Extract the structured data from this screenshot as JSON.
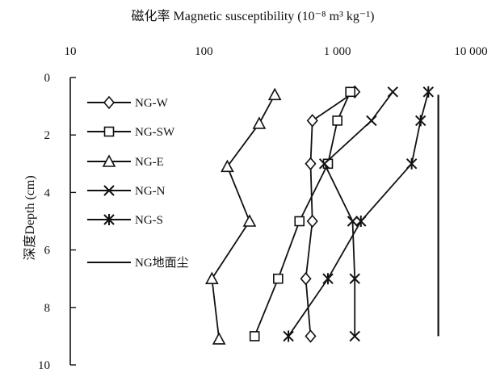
{
  "chart_data": {
    "type": "line",
    "title": "磁化率 Magnetic susceptibility (10⁻⁸ m³ kg⁻¹)",
    "xlabel": "磁化率 Magnetic susceptibility (10⁻⁸ m³ kg⁻¹)",
    "ylabel": "深度Depth (cm)",
    "x_scale": "log",
    "xlim": [
      10,
      10000
    ],
    "ylim": [
      0,
      10
    ],
    "y_inverted": true,
    "x_tick_labels": [
      "10",
      "100",
      "1 000",
      "10 000"
    ],
    "x_tick_values": [
      10,
      100,
      1000,
      10000
    ],
    "y_tick_labels": [
      "0",
      "2",
      "4",
      "6",
      "8",
      "10"
    ],
    "y_tick_values": [
      0,
      2,
      4,
      6,
      8,
      10
    ],
    "grid": false,
    "legend_position": "left",
    "series": [
      {
        "name": "NG-W",
        "marker": "diamond",
        "points": [
          {
            "x": 1350,
            "y": 0.5
          },
          {
            "x": 650,
            "y": 1.5
          },
          {
            "x": 630,
            "y": 3.0
          },
          {
            "x": 650,
            "y": 5.0
          },
          {
            "x": 580,
            "y": 7.0
          },
          {
            "x": 630,
            "y": 9.0
          }
        ]
      },
      {
        "name": "NG-SW",
        "marker": "square",
        "points": [
          {
            "x": 1250,
            "y": 0.5
          },
          {
            "x": 1000,
            "y": 1.5
          },
          {
            "x": 850,
            "y": 3.0
          },
          {
            "x": 520,
            "y": 5.0
          },
          {
            "x": 360,
            "y": 7.0
          },
          {
            "x": 240,
            "y": 9.0
          }
        ]
      },
      {
        "name": "NG-E",
        "marker": "triangle",
        "points": [
          {
            "x": 340,
            "y": 0.6
          },
          {
            "x": 260,
            "y": 1.6
          },
          {
            "x": 150,
            "y": 3.1
          },
          {
            "x": 220,
            "y": 5.0
          },
          {
            "x": 115,
            "y": 7.0
          },
          {
            "x": 130,
            "y": 9.1
          }
        ]
      },
      {
        "name": "NG-N",
        "marker": "x",
        "points": [
          {
            "x": 2600,
            "y": 0.5
          },
          {
            "x": 1800,
            "y": 1.5
          },
          {
            "x": 800,
            "y": 3.0
          },
          {
            "x": 1300,
            "y": 5.0
          },
          {
            "x": 1350,
            "y": 7.0
          },
          {
            "x": 1350,
            "y": 9.0
          }
        ]
      },
      {
        "name": "NG-S",
        "marker": "asterisk",
        "points": [
          {
            "x": 4800,
            "y": 0.5
          },
          {
            "x": 4200,
            "y": 1.5
          },
          {
            "x": 3600,
            "y": 3.0
          },
          {
            "x": 1500,
            "y": 5.0
          },
          {
            "x": 850,
            "y": 7.0
          },
          {
            "x": 430,
            "y": 9.0
          }
        ]
      },
      {
        "name": "NG地面尘",
        "marker": "none",
        "points": [
          {
            "x": 5700,
            "y": 0.6
          },
          {
            "x": 5700,
            "y": 9.0
          }
        ]
      }
    ]
  }
}
